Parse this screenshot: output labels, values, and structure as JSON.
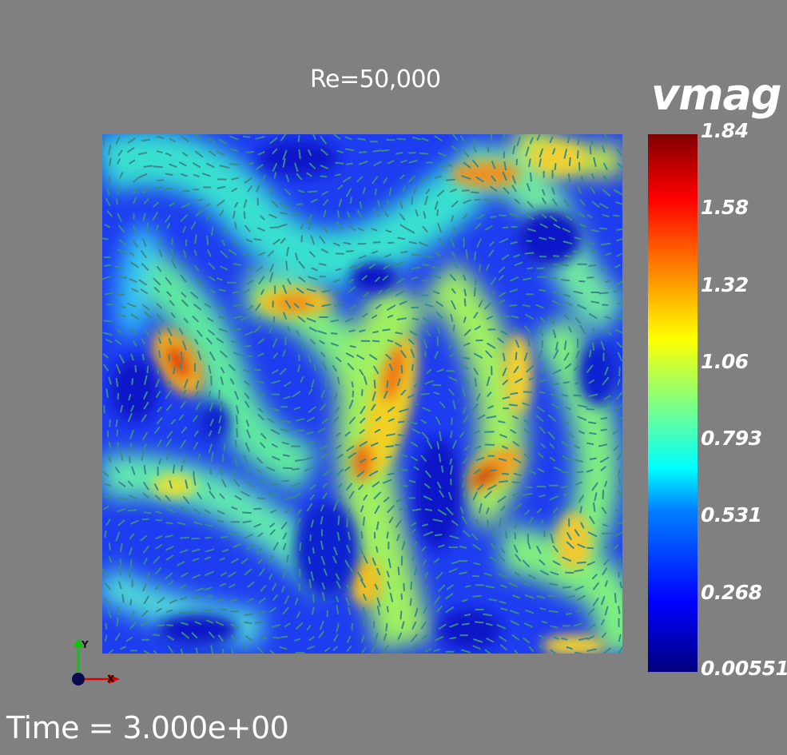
{
  "title": "Re=50,000",
  "time_label": "Time = 3.000e+00",
  "colorbar": {
    "title": "vmag",
    "ticks": [
      "1.84",
      "1.58",
      "1.32",
      "1.06",
      "0.793",
      "0.531",
      "0.268",
      "0.00551"
    ],
    "colormap": [
      "#00007f",
      "#0000ff",
      "#0080ff",
      "#00ffff",
      "#80ff80",
      "#ffff00",
      "#ff8000",
      "#ff0000",
      "#7f0000"
    ]
  },
  "axes": {
    "y_label": "Y",
    "x_label": "X",
    "y_color": "#00cc00",
    "x_color": "#dd0000"
  },
  "colors": {
    "background": "#808080",
    "glyph": "#3a8a8a"
  }
}
